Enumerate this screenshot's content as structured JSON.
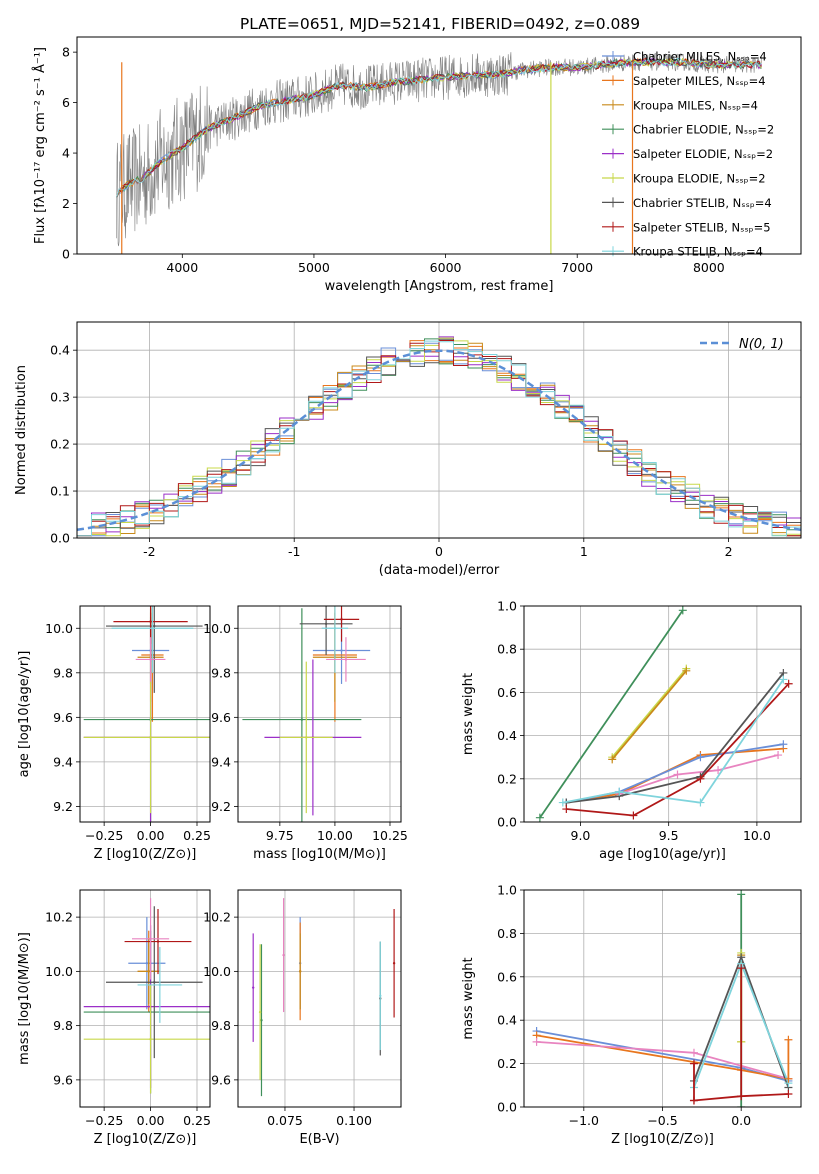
{
  "figure_title": "PLATE=0651, MJD=52141, FIBERID=0492, z=0.089",
  "colors": [
    "#6a8fd8",
    "#e8761e",
    "#c98a1a",
    "#3f8f5a",
    "#9b2fc8",
    "#c8d84a",
    "#555555",
    "#b01818",
    "#7fd4dc"
  ],
  "chart_data": [
    {
      "id": "spectrum",
      "type": "line",
      "title": "PLATE=0651, MJD=52141, FIBERID=0492, z=0.089",
      "xlabel": "wavelength [Angstrom, rest frame]",
      "ylabel": "Flux [fλ10⁻¹⁷ erg cm⁻² s⁻¹ Å⁻¹]",
      "xlim": [
        3200,
        8700
      ],
      "ylim": [
        0,
        8.6
      ],
      "xticks": [
        4000,
        5000,
        6000,
        7000,
        8000
      ],
      "yticks": [
        0,
        2,
        4,
        6,
        8
      ],
      "grid": false,
      "legend_position": "top-right",
      "data_series": {
        "name": "",
        "color": "#808080",
        "x": [
          3500,
          3600,
          3700,
          3800,
          3900,
          4000,
          4200,
          4400,
          4600,
          4800,
          5000,
          5200,
          5400,
          5600,
          5800,
          6000,
          6200,
          6400,
          6600,
          6800,
          7000,
          7200,
          7400,
          7600,
          7800,
          8000,
          8200,
          8400
        ],
        "y": [
          2.4,
          2.8,
          3.0,
          3.5,
          3.9,
          4.2,
          5.0,
          5.4,
          5.9,
          6.1,
          6.3,
          6.7,
          6.6,
          6.8,
          6.9,
          7.0,
          7.1,
          7.1,
          7.3,
          7.4,
          7.4,
          7.5,
          7.6,
          7.6,
          7.6,
          7.5,
          7.5,
          7.5
        ]
      },
      "series": [
        {
          "name": "Chabrier MILES, N_SSP=4",
          "color": "#6a8fd8"
        },
        {
          "name": "Salpeter MILES, N_SSP=4",
          "color": "#e8761e"
        },
        {
          "name": "Kroupa MILES, N_SSP=4",
          "color": "#c98a1a"
        },
        {
          "name": "Chabrier ELODIE, N_SSP=2",
          "color": "#3f8f5a"
        },
        {
          "name": "Salpeter ELODIE, N_SSP=2",
          "color": "#9b2fc8"
        },
        {
          "name": "Kroupa ELODIE, N_SSP=2",
          "color": "#c8d84a"
        },
        {
          "name": "Chabrier STELIB, N_SSP=4",
          "color": "#555555"
        },
        {
          "name": "Salpeter STELIB, N_SSP=5",
          "color": "#b01818"
        },
        {
          "name": "Kroupa STELIB, N_SSP=4",
          "color": "#7fd4dc"
        }
      ]
    },
    {
      "id": "residuals",
      "type": "line",
      "xlabel": "(data-model)/error",
      "ylabel": "Normed distribution",
      "xlim": [
        -2.5,
        2.5
      ],
      "ylim": [
        0,
        0.46
      ],
      "xticks": [
        -2,
        -1,
        0,
        1,
        2
      ],
      "yticks": [
        0.0,
        0.1,
        0.2,
        0.3,
        0.4
      ],
      "grid": true,
      "legend_position": "top-right",
      "legend": "N(0, 1)",
      "normal_curve": {
        "mu": 0,
        "sigma": 1,
        "color": "#5b8fd6"
      }
    },
    {
      "id": "age-vs-z",
      "type": "scatter",
      "xlabel": "Z [log10(Z/Z⊙)]",
      "ylabel": "age  [log10(age/yr)]",
      "xlim": [
        -0.38,
        0.32
      ],
      "ylim": [
        9.13,
        10.1
      ],
      "xticks": [
        -0.25,
        0.0,
        0.25
      ],
      "yticks": [
        9.2,
        9.4,
        9.6,
        9.8,
        10.0
      ],
      "grid": true,
      "points": [
        {
          "x": 0.0,
          "y": 9.9,
          "xerr": 0.1,
          "yerr": 0.15,
          "color": "#6a8fd8"
        },
        {
          "x": 0.01,
          "y": 9.88,
          "xerr": 0.06,
          "yerr": 0.3,
          "color": "#e8761e"
        },
        {
          "x": 0.0,
          "y": 9.87,
          "xerr": 0.07,
          "yerr": 0.2,
          "color": "#c98a1a"
        },
        {
          "x": 0.0,
          "y": 9.59,
          "xerr": 0.36,
          "yerr": 0.5,
          "color": "#3f8f5a"
        },
        {
          "x": 0.0,
          "y": 9.51,
          "xerr": 0.36,
          "yerr": 0.5,
          "color": "#9b2fc8"
        },
        {
          "x": 0.0,
          "y": 9.51,
          "xerr": 0.36,
          "yerr": 0.34,
          "color": "#c8d84a"
        },
        {
          "x": 0.02,
          "y": 10.01,
          "xerr": 0.26,
          "yerr": 0.3,
          "color": "#555555"
        },
        {
          "x": 0.0,
          "y": 10.03,
          "xerr": 0.2,
          "yerr": 0.1,
          "color": "#b01818"
        },
        {
          "x": 0.01,
          "y": 10.0,
          "xerr": 0.22,
          "yerr": 0.2,
          "color": "#7fd4dc"
        },
        {
          "x": 0.0,
          "y": 9.86,
          "xerr": 0.08,
          "yerr": 0.1,
          "color": "#e884c0"
        }
      ]
    },
    {
      "id": "age-vs-mass",
      "type": "scatter",
      "xlabel": "mass [log10(M/M⊙)]",
      "ylabel": "",
      "xlim": [
        9.56,
        10.3
      ],
      "ylim": [
        9.13,
        10.1
      ],
      "xticks": [
        9.75,
        10.0,
        10.25
      ],
      "yticks": [
        9.2,
        9.4,
        9.6,
        9.8,
        10.0
      ],
      "grid": true,
      "points": [
        {
          "x": 10.03,
          "y": 9.9,
          "xerr": 0.13,
          "yerr": 0.15,
          "color": "#6a8fd8"
        },
        {
          "x": 10.0,
          "y": 9.88,
          "xerr": 0.1,
          "yerr": 0.3,
          "color": "#e8761e"
        },
        {
          "x": 10.0,
          "y": 9.87,
          "xerr": 0.1,
          "yerr": 0.2,
          "color": "#c98a1a"
        },
        {
          "x": 9.85,
          "y": 9.59,
          "xerr": 0.27,
          "yerr": 0.5,
          "color": "#3f8f5a"
        },
        {
          "x": 9.9,
          "y": 9.51,
          "xerr": 0.22,
          "yerr": 0.35,
          "color": "#9b2fc8"
        },
        {
          "x": 9.87,
          "y": 9.51,
          "xerr": 0.12,
          "yerr": 0.34,
          "color": "#c8d84a"
        },
        {
          "x": 9.96,
          "y": 10.02,
          "xerr": 0.12,
          "yerr": 0.14,
          "color": "#555555"
        },
        {
          "x": 10.03,
          "y": 10.04,
          "xerr": 0.08,
          "yerr": 0.1,
          "color": "#b01818"
        },
        {
          "x": 10.0,
          "y": 10.0,
          "xerr": 0.06,
          "yerr": 0.2,
          "color": "#7fd4dc"
        },
        {
          "x": 10.05,
          "y": 9.86,
          "xerr": 0.09,
          "yerr": 0.1,
          "color": "#e884c0"
        }
      ]
    },
    {
      "id": "weight-vs-age",
      "type": "line",
      "xlabel": "age  [log10(age/yr)]",
      "ylabel": "mass weight",
      "xlim": [
        8.68,
        10.25
      ],
      "ylim": [
        0,
        1.0
      ],
      "xticks": [
        9.0,
        9.5,
        10.0
      ],
      "yticks": [
        0.0,
        0.2,
        0.4,
        0.6,
        0.8,
        1.0
      ],
      "grid": true,
      "series": [
        {
          "color": "#3f8f5a",
          "x": [
            8.77,
            9.58
          ],
          "y": [
            0.02,
            0.98
          ]
        },
        {
          "color": "#c8d84a",
          "x": [
            9.18,
            9.6
          ],
          "y": [
            0.3,
            0.71
          ]
        },
        {
          "color": "#c98a1a",
          "x": [
            9.18,
            9.6
          ],
          "y": [
            0.29,
            0.7
          ]
        },
        {
          "color": "#e8761e",
          "x": [
            8.92,
            9.22,
            9.68,
            10.15
          ],
          "y": [
            0.09,
            0.13,
            0.31,
            0.34
          ]
        },
        {
          "color": "#6a8fd8",
          "x": [
            8.92,
            9.22,
            9.68,
            10.15
          ],
          "y": [
            0.09,
            0.14,
            0.3,
            0.36
          ]
        },
        {
          "color": "#e884c0",
          "x": [
            9.22,
            9.55,
            9.78,
            10.12
          ],
          "y": [
            0.13,
            0.22,
            0.24,
            0.31
          ]
        },
        {
          "color": "#555555",
          "x": [
            8.92,
            9.22,
            9.68,
            10.15
          ],
          "y": [
            0.09,
            0.12,
            0.21,
            0.69
          ]
        },
        {
          "color": "#b01818",
          "x": [
            8.92,
            9.3,
            9.68,
            10.18
          ],
          "y": [
            0.06,
            0.03,
            0.2,
            0.64
          ]
        },
        {
          "color": "#7fd4dc",
          "x": [
            8.9,
            9.22,
            9.68,
            10.15
          ],
          "y": [
            0.09,
            0.14,
            0.09,
            0.66
          ]
        }
      ]
    },
    {
      "id": "mass-vs-z",
      "type": "scatter",
      "xlabel": "Z [log10(Z/Z⊙)]",
      "ylabel": "mass [log10(M/M⊙)]",
      "xlim": [
        -0.38,
        0.32
      ],
      "ylim": [
        9.5,
        10.3
      ],
      "xticks": [
        -0.25,
        0.0,
        0.25
      ],
      "yticks": [
        9.6,
        9.8,
        10.0,
        10.2
      ],
      "grid": true,
      "points": [
        {
          "x": -0.02,
          "y": 10.03,
          "xerr": 0.1,
          "yerr": 0.17,
          "color": "#6a8fd8"
        },
        {
          "x": -0.01,
          "y": 10.0,
          "xerr": 0.06,
          "yerr": 0.15,
          "color": "#e8761e"
        },
        {
          "x": -0.01,
          "y": 10.0,
          "xerr": 0.06,
          "yerr": 0.12,
          "color": "#c98a1a"
        },
        {
          "x": 0.0,
          "y": 9.85,
          "xerr": 0.36,
          "yerr": 0.3,
          "color": "#3f8f5a"
        },
        {
          "x": 0.0,
          "y": 9.87,
          "xerr": 0.36,
          "yerr": 0.3,
          "color": "#9b2fc8"
        },
        {
          "x": 0.0,
          "y": 9.75,
          "xerr": 0.36,
          "yerr": 0.2,
          "color": "#c8d84a"
        },
        {
          "x": 0.02,
          "y": 9.96,
          "xerr": 0.26,
          "yerr": 0.28,
          "color": "#555555"
        },
        {
          "x": 0.04,
          "y": 10.11,
          "xerr": 0.18,
          "yerr": 0.12,
          "color": "#b01818"
        },
        {
          "x": 0.05,
          "y": 9.95,
          "xerr": 0.12,
          "yerr": 0.14,
          "color": "#7fd4dc"
        },
        {
          "x": 0.0,
          "y": 10.12,
          "xerr": 0.1,
          "yerr": 0.15,
          "color": "#e884c0"
        }
      ]
    },
    {
      "id": "mass-vs-ebv",
      "type": "scatter",
      "xlabel": "E(B-V)",
      "ylabel": "",
      "xlim": [
        0.058,
        0.117
      ],
      "ylim": [
        9.5,
        10.3
      ],
      "xticks": [
        0.075,
        0.1
      ],
      "yticks": [
        9.6,
        9.8,
        10.0,
        10.2
      ],
      "grid": true,
      "points": [
        {
          "x": 0.0805,
          "y": 10.03,
          "yerr": 0.17,
          "color": "#6a8fd8"
        },
        {
          "x": 0.0805,
          "y": 10.0,
          "yerr": 0.18,
          "color": "#e8761e"
        },
        {
          "x": 0.0805,
          "y": 10.0,
          "yerr": 0.14,
          "color": "#c98a1a"
        },
        {
          "x": 0.0665,
          "y": 9.82,
          "yerr": 0.28,
          "color": "#3f8f5a"
        },
        {
          "x": 0.0635,
          "y": 9.94,
          "yerr": 0.2,
          "color": "#9b2fc8"
        },
        {
          "x": 0.066,
          "y": 9.85,
          "yerr": 0.25,
          "color": "#c8d84a"
        },
        {
          "x": 0.1095,
          "y": 9.9,
          "yerr": 0.21,
          "color": "#555555"
        },
        {
          "x": 0.1145,
          "y": 10.03,
          "yerr": 0.2,
          "color": "#b01818"
        },
        {
          "x": 0.1095,
          "y": 9.91,
          "yerr": 0.2,
          "color": "#7fd4dc"
        },
        {
          "x": 0.0745,
          "y": 10.06,
          "yerr": 0.21,
          "color": "#e884c0"
        }
      ]
    },
    {
      "id": "weight-vs-z",
      "type": "line",
      "xlabel": "Z [log10(Z/Z⊙)]",
      "ylabel": "mass weight",
      "xlim": [
        -1.38,
        0.38
      ],
      "ylim": [
        0,
        1.0
      ],
      "xticks": [
        -1.0,
        -0.5,
        0.0
      ],
      "yticks": [
        0.0,
        0.2,
        0.4,
        0.6,
        0.8,
        1.0
      ],
      "grid": true,
      "series": [
        {
          "color": "#3f8f5a",
          "x": [
            0.0,
            0.0
          ],
          "y": [
            0.0,
            0.98
          ]
        },
        {
          "color": "#6a8fd8",
          "x": [
            -1.3,
            0.0,
            0.3
          ],
          "y": [
            0.35,
            0.18,
            0.12
          ]
        },
        {
          "color": "#e8761e",
          "x": [
            -1.3,
            0.0,
            0.3
          ],
          "y": [
            0.33,
            0.17,
            0.13
          ]
        },
        {
          "color": "#e884c0",
          "x": [
            -1.3,
            -0.3,
            0.3
          ],
          "y": [
            0.3,
            0.25,
            0.13
          ]
        },
        {
          "color": "#c98a1a",
          "x": [
            0.0,
            0.0
          ],
          "y": [
            0.3,
            0.7
          ]
        },
        {
          "color": "#c8d84a",
          "x": [
            0.0,
            0.0
          ],
          "y": [
            0.3,
            0.71
          ]
        },
        {
          "color": "#555555",
          "x": [
            -0.3,
            0.0,
            0.3
          ],
          "y": [
            0.12,
            0.69,
            0.09
          ]
        },
        {
          "color": "#b01818",
          "x": [
            -0.3,
            0.0,
            0.3
          ],
          "y": [
            0.03,
            0.05,
            0.06
          ]
        },
        {
          "color": "#7fd4dc",
          "x": [
            -0.3,
            0.0,
            0.3
          ],
          "y": [
            0.09,
            0.66,
            0.11
          ]
        },
        {
          "color": "#e8761e",
          "x": [
            0.3,
            0.3
          ],
          "y": [
            0.13,
            0.31
          ]
        },
        {
          "color": "#b01818",
          "x": [
            0.0,
            0.0
          ],
          "y": [
            0.05,
            0.64
          ]
        },
        {
          "color": "#b01818",
          "x": [
            -0.3,
            -0.3
          ],
          "y": [
            0.03,
            0.2
          ]
        }
      ]
    }
  ]
}
